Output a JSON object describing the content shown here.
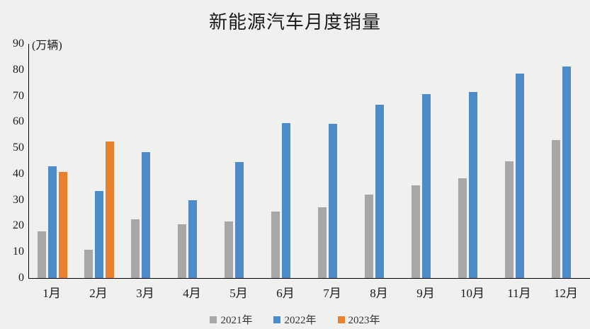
{
  "title": "新能源汽车月度销量",
  "unit_label": "(万辆)",
  "chart_data": {
    "type": "bar",
    "title": "新能源汽车月度销量",
    "ylabel": "(万辆)",
    "categories": [
      "1月",
      "2月",
      "3月",
      "4月",
      "5月",
      "6月",
      "7月",
      "8月",
      "9月",
      "10月",
      "11月",
      "12月"
    ],
    "series": [
      {
        "name": "2021年",
        "color": "#a7a7a7",
        "values": [
          17.9,
          11.0,
          22.6,
          20.6,
          21.7,
          25.6,
          27.1,
          32.1,
          35.7,
          38.3,
          45.0,
          53.1
        ]
      },
      {
        "name": "2022年",
        "color": "#4e8bc9",
        "values": [
          43.1,
          33.4,
          48.4,
          29.9,
          44.7,
          59.6,
          59.3,
          66.6,
          70.8,
          71.4,
          78.6,
          81.4
        ]
      },
      {
        "name": "2023年",
        "color": "#e8802e",
        "values": [
          40.8,
          52.5,
          null,
          null,
          null,
          null,
          null,
          null,
          null,
          null,
          null,
          null
        ]
      }
    ],
    "ylim": [
      0,
      90
    ],
    "yticks": [
      0,
      10,
      20,
      30,
      40,
      50,
      60,
      70,
      80,
      90
    ],
    "grid": false,
    "legend_position": "bottom"
  }
}
